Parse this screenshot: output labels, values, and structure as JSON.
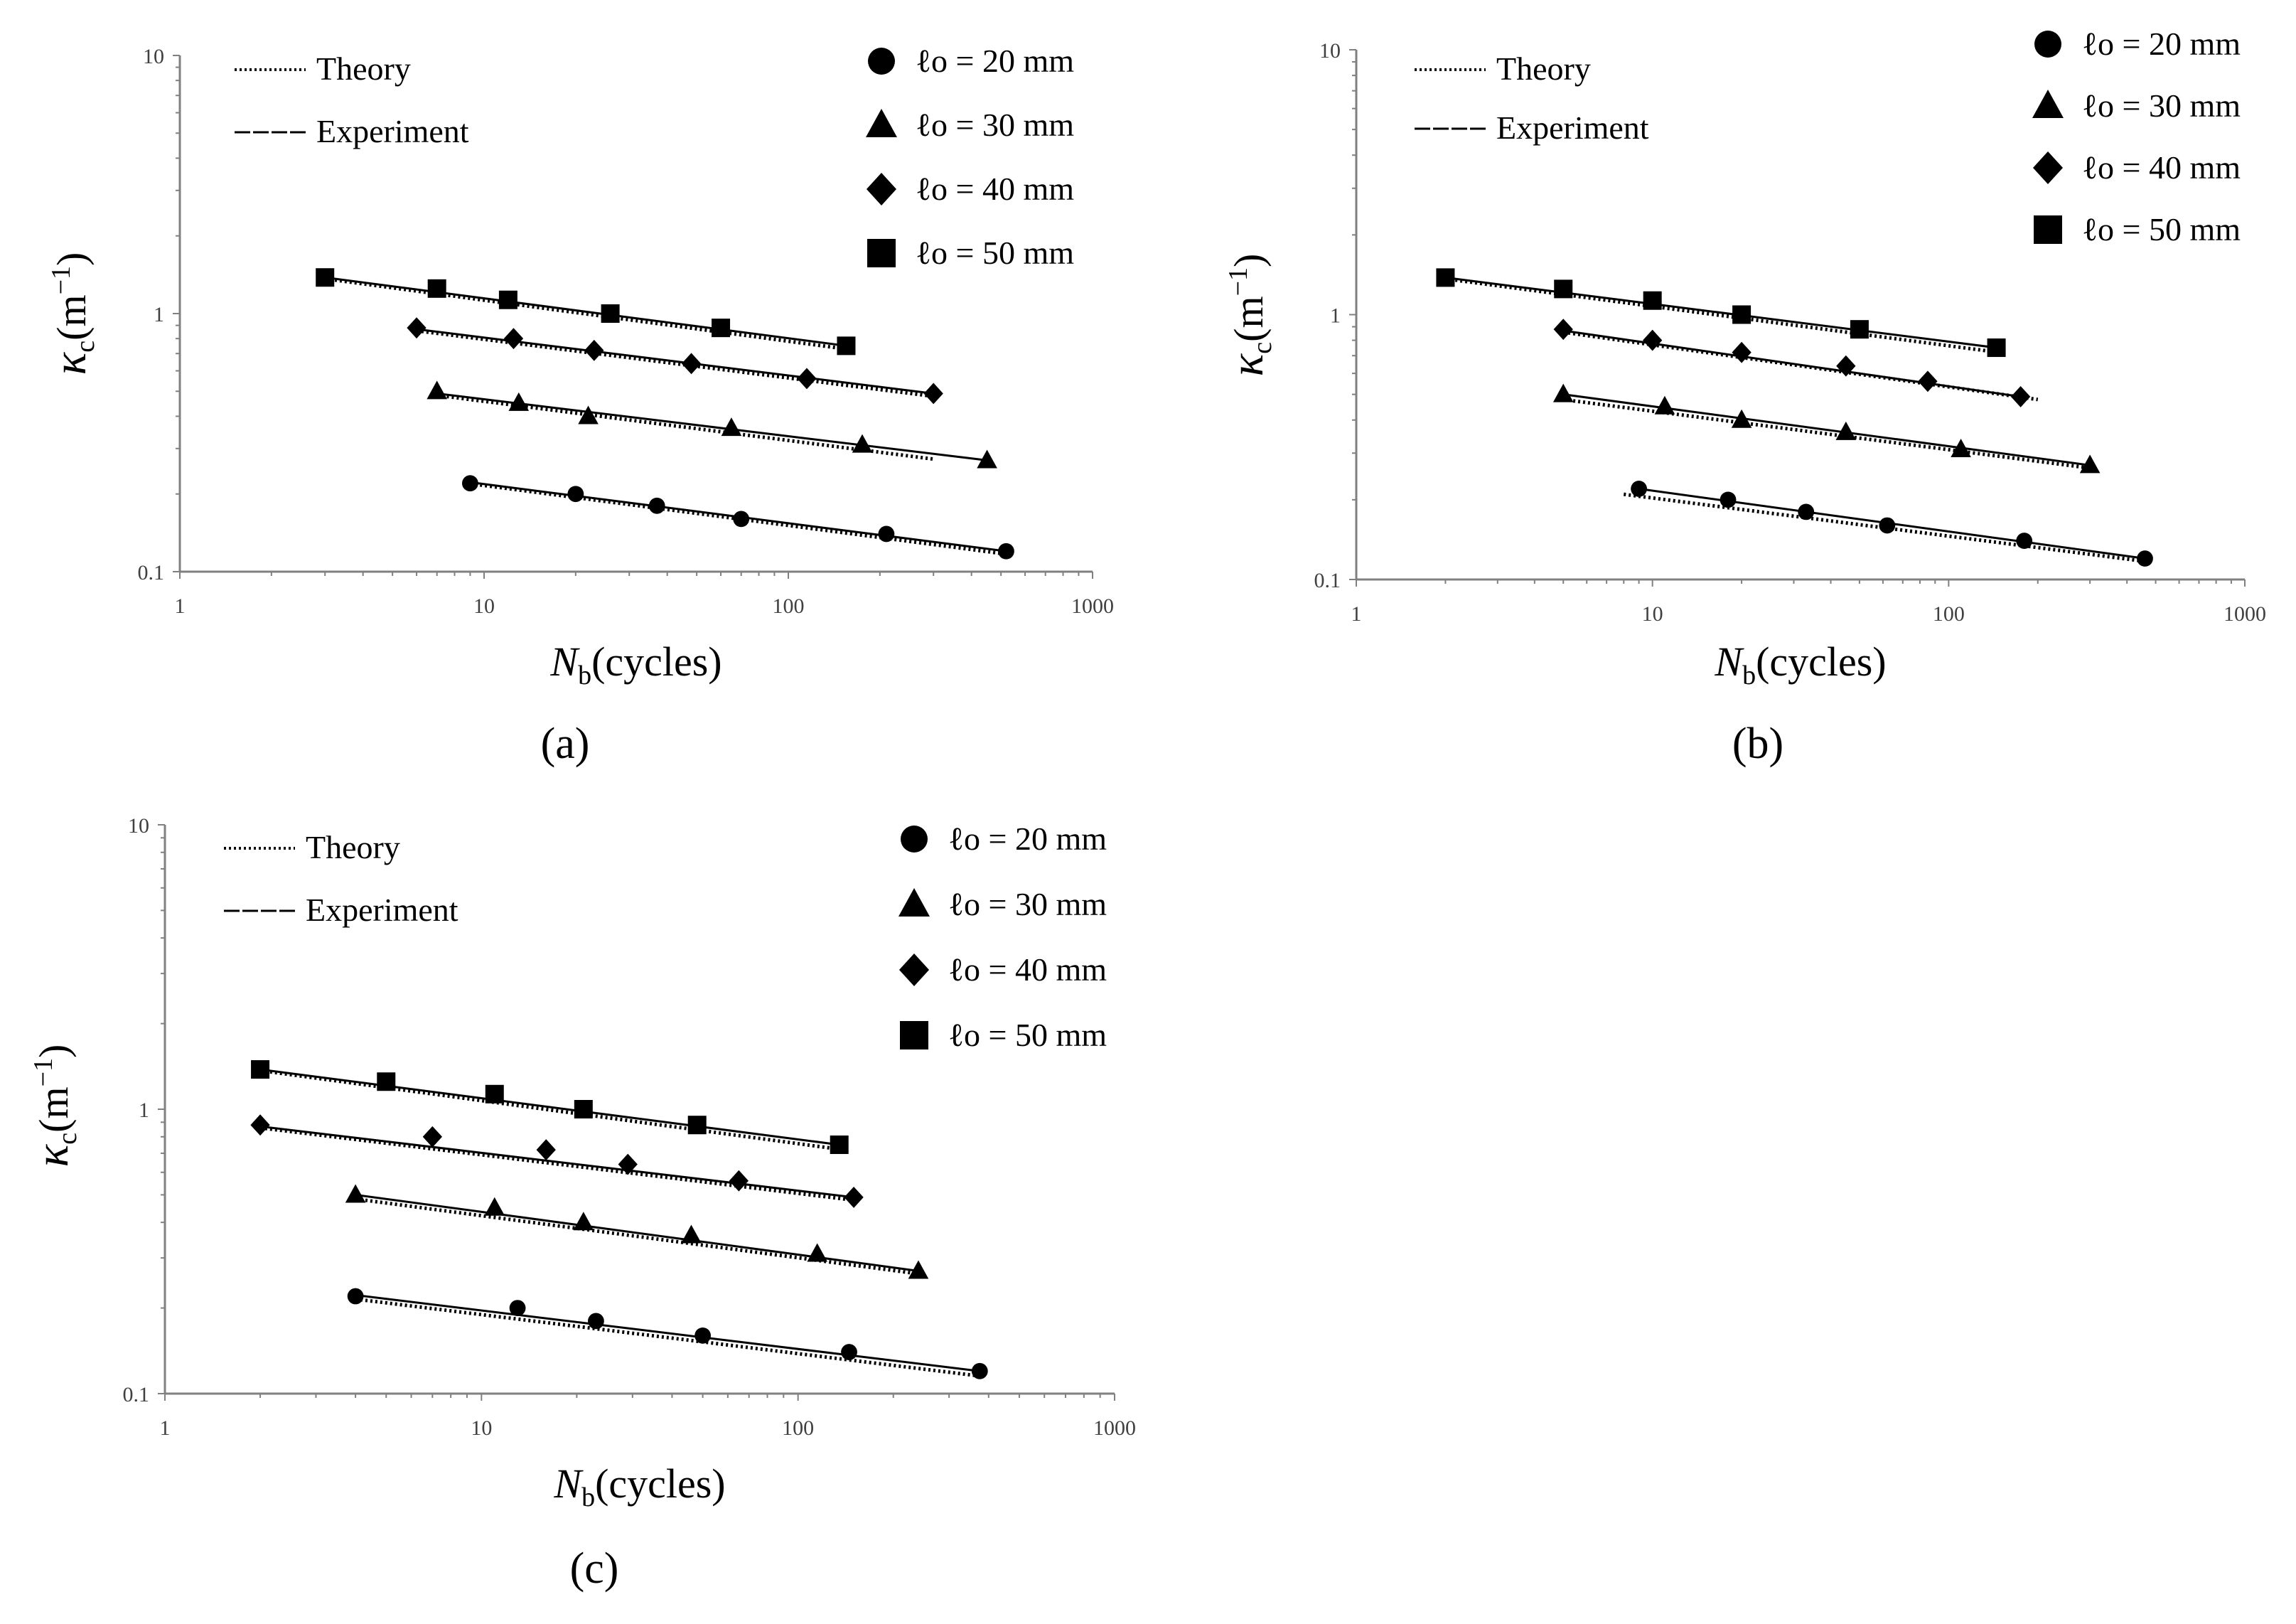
{
  "figure": {
    "panels": [
      "a",
      "b",
      "c"
    ]
  },
  "chart_data": [
    {
      "type": "scatter",
      "panel_label": "(a)",
      "scale": "log-log",
      "xlabel": "Nb(cycles)",
      "xlabel_main": "N",
      "xlabel_sub": "b",
      "xlabel_rest": "(cycles)",
      "ylabel_main": "κ",
      "ylabel_sub": "c",
      "ylabel_rest": "(m",
      "ylabel_sup": "−1",
      "ylabel_close": ")",
      "xlim": [
        1,
        1000
      ],
      "ylim": [
        0.1,
        10
      ],
      "x_ticks": [
        "1",
        "10",
        "100",
        "1000"
      ],
      "y_ticks": [
        "0.1",
        "1",
        "10"
      ],
      "line_legend": [
        {
          "style": "dotted",
          "label": "Theory"
        },
        {
          "style": "dashed",
          "label": "Experiment"
        }
      ],
      "series": [
        {
          "name": "ℓo = 20 mm",
          "marker": "circle",
          "x": [
            9,
            20,
            37,
            70,
            210,
            520
          ],
          "y": [
            0.22,
            0.2,
            0.18,
            0.16,
            0.14,
            0.12
          ],
          "theory": [
            [
              9,
              0.225
            ],
            [
              520,
              0.12
            ]
          ],
          "experiment": [
            [
              9,
              0.222
            ],
            [
              520,
              0.12
            ]
          ]
        },
        {
          "name": "ℓo = 30 mm",
          "marker": "triangle",
          "x": [
            7,
            13,
            22,
            65,
            175,
            450
          ],
          "y": [
            0.5,
            0.45,
            0.4,
            0.36,
            0.31,
            0.27
          ],
          "theory": [
            [
              7,
              0.495
            ],
            [
              300,
              0.28
            ]
          ],
          "experiment": [
            [
              7,
              0.49
            ],
            [
              450,
              0.27
            ]
          ]
        },
        {
          "name": "ℓo = 40 mm",
          "marker": "diamond",
          "x": [
            6,
            12.5,
            23,
            48,
            115,
            300
          ],
          "y": [
            0.88,
            0.8,
            0.72,
            0.64,
            0.56,
            0.49
          ],
          "theory": [
            [
              6,
              0.88
            ],
            [
              300,
              0.49
            ]
          ],
          "experiment": [
            [
              6,
              0.87
            ],
            [
              300,
              0.49
            ]
          ]
        },
        {
          "name": "ℓo = 50 mm",
          "marker": "square",
          "x": [
            3,
            7,
            12,
            26,
            60,
            155
          ],
          "y": [
            1.38,
            1.25,
            1.13,
            1.0,
            0.88,
            0.75
          ],
          "theory": [
            [
              3,
              1.4
            ],
            [
              165,
              0.74
            ]
          ],
          "experiment": [
            [
              3,
              1.38
            ],
            [
              155,
              0.75
            ]
          ]
        }
      ]
    },
    {
      "type": "scatter",
      "panel_label": "(b)",
      "scale": "log-log",
      "xlabel": "Nb(cycles)",
      "xlabel_main": "N",
      "xlabel_sub": "b",
      "xlabel_rest": "(cycles)",
      "ylabel_main": "κ",
      "ylabel_sub": "c",
      "ylabel_rest": "(m",
      "ylabel_sup": "−1",
      "ylabel_close": ")",
      "xlim": [
        1,
        1000
      ],
      "ylim": [
        0.1,
        10
      ],
      "x_ticks": [
        "1",
        "10",
        "100",
        "1000"
      ],
      "y_ticks": [
        "0.1",
        "1",
        "10"
      ],
      "line_legend": [
        {
          "style": "dotted",
          "label": "Theory"
        },
        {
          "style": "dashed",
          "label": "Experiment"
        }
      ],
      "series": [
        {
          "name": "ℓo = 20 mm",
          "marker": "circle",
          "x": [
            9,
            18,
            33,
            62,
            180,
            460
          ],
          "y": [
            0.22,
            0.2,
            0.18,
            0.16,
            0.14,
            0.12
          ],
          "theory": [
            [
              8,
              0.215
            ],
            [
              460,
              0.12
            ]
          ],
          "experiment": [
            [
              8.5,
              0.222
            ],
            [
              460,
              0.12
            ]
          ]
        },
        {
          "name": "ℓo = 30 mm",
          "marker": "triangle",
          "x": [
            5,
            11,
            20,
            45,
            110,
            300
          ],
          "y": [
            0.5,
            0.45,
            0.4,
            0.36,
            0.31,
            0.27
          ],
          "theory": [
            [
              5,
              0.49
            ],
            [
              300,
              0.27
            ]
          ],
          "experiment": [
            [
              5,
              0.5
            ],
            [
              300,
              0.27
            ]
          ]
        },
        {
          "name": "ℓo = 40 mm",
          "marker": "diamond",
          "x": [
            5,
            10,
            20,
            45,
            85,
            175
          ],
          "y": [
            0.88,
            0.8,
            0.72,
            0.64,
            0.56,
            0.49
          ],
          "theory": [
            [
              5,
              0.88
            ],
            [
              200,
              0.49
            ]
          ],
          "experiment": [
            [
              5,
              0.87
            ],
            [
              175,
              0.49
            ]
          ]
        },
        {
          "name": "ℓo = 50 mm",
          "marker": "square",
          "x": [
            2,
            5,
            10,
            20,
            50,
            145
          ],
          "y": [
            1.38,
            1.25,
            1.13,
            1.0,
            0.88,
            0.75
          ],
          "theory": [
            [
              2,
              1.4
            ],
            [
              145,
              0.74
            ]
          ],
          "experiment": [
            [
              2,
              1.38
            ],
            [
              145,
              0.75
            ]
          ]
        }
      ]
    },
    {
      "type": "scatter",
      "panel_label": "(c)",
      "scale": "log-log",
      "xlabel": "Nb(cycles)",
      "xlabel_main": "N",
      "xlabel_sub": "b",
      "xlabel_rest": "(cycles)",
      "ylabel_main": "κ",
      "ylabel_sub": "c",
      "ylabel_rest": "(m",
      "ylabel_sup": "−1",
      "ylabel_close": ")",
      "xlim": [
        1,
        1000
      ],
      "ylim": [
        0.1,
        10
      ],
      "x_ticks": [
        "1",
        "10",
        "100",
        "1000"
      ],
      "y_ticks": [
        "0.1",
        "1",
        "10"
      ],
      "line_legend": [
        {
          "style": "dotted",
          "label": "Theory"
        },
        {
          "style": "dashed",
          "label": "Experiment"
        }
      ],
      "series": [
        {
          "name": "ℓo = 20 mm",
          "marker": "circle",
          "x": [
            4,
            13,
            23,
            50,
            145,
            375
          ],
          "y": [
            0.22,
            0.2,
            0.18,
            0.16,
            0.14,
            0.12
          ],
          "theory": [
            [
              4,
              0.22
            ],
            [
              375,
              0.118
            ]
          ],
          "experiment": [
            [
              4,
              0.222
            ],
            [
              375,
              0.12
            ]
          ]
        },
        {
          "name": "ℓo = 30 mm",
          "marker": "triangle",
          "x": [
            4,
            11,
            21,
            46,
            115,
            240
          ],
          "y": [
            0.5,
            0.45,
            0.4,
            0.36,
            0.31,
            0.27
          ],
          "theory": [
            [
              4,
              0.495
            ],
            [
              240,
              0.27
            ]
          ],
          "experiment": [
            [
              4,
              0.5
            ],
            [
              240,
              0.27
            ]
          ]
        },
        {
          "name": "ℓo = 40 mm",
          "marker": "diamond",
          "x": [
            2,
            7,
            16,
            29,
            65,
            150
          ],
          "y": [
            0.88,
            0.8,
            0.72,
            0.64,
            0.56,
            0.49
          ],
          "theory": [
            [
              2,
              0.88
            ],
            [
              150,
              0.49
            ]
          ],
          "experiment": [
            [
              2,
              0.87
            ],
            [
              150,
              0.49
            ]
          ]
        },
        {
          "name": "ℓo = 50 mm",
          "marker": "square",
          "x": [
            2,
            5,
            11,
            21,
            48,
            135
          ],
          "y": [
            1.38,
            1.25,
            1.13,
            1.0,
            0.88,
            0.75
          ],
          "theory": [
            [
              2,
              1.4
            ],
            [
              135,
              0.74
            ]
          ],
          "experiment": [
            [
              2,
              1.38
            ],
            [
              135,
              0.75
            ]
          ]
        }
      ]
    }
  ]
}
